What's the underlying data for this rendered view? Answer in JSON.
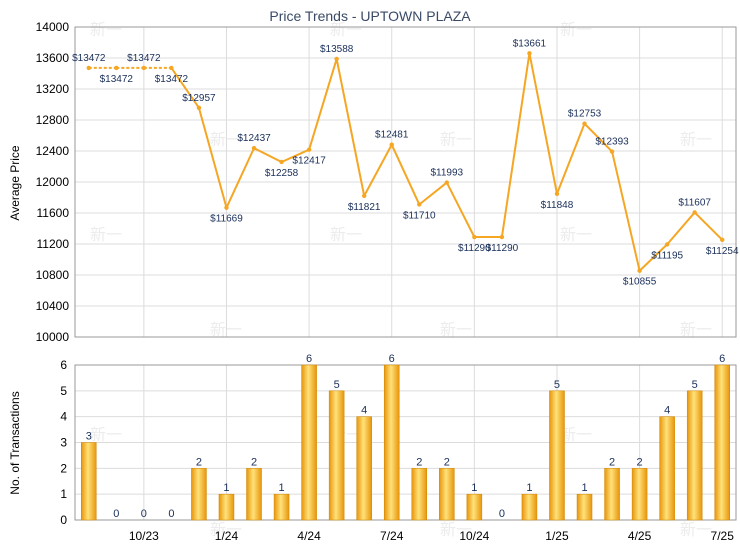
{
  "chart_data": [
    {
      "type": "line",
      "title": "Price Trends - UPTOWN PLAZA",
      "ylabel": "Average Price",
      "ylim": [
        10000,
        14000
      ],
      "yticks": [
        "10000",
        "10400",
        "10800",
        "11200",
        "11600",
        "12000",
        "12400",
        "12800",
        "13200",
        "13600",
        "14000"
      ],
      "grid": true,
      "color": "#f5a623",
      "series": [
        {
          "values": [
            13472,
            13472,
            13472,
            13472,
            12957,
            11669,
            12437,
            12258,
            12417,
            13588,
            11821,
            12481,
            11710,
            11993,
            11290,
            11290,
            13661,
            11848,
            12753,
            12393,
            10855,
            11195,
            11607,
            11254
          ],
          "labels": [
            "$13472",
            "$13472",
            "$13472",
            "$13472",
            "$12957",
            "$11669",
            "$12437",
            "$12258",
            "$12417",
            "$13588",
            "$11821",
            "$12481",
            "$11710",
            "$11993",
            "$11290",
            "$11290",
            "$13661",
            "$11848",
            "$12753",
            "$12393",
            "$10855",
            "$11195",
            "$11607",
            "$11254"
          ],
          "dashed_first_segments": 3
        }
      ]
    },
    {
      "type": "bar",
      "ylabel": "No. of Transactions",
      "ylim": [
        0,
        6
      ],
      "yticks": [
        "0",
        "1",
        "2",
        "3",
        "4",
        "5",
        "6"
      ],
      "x_tick_labels": [
        {
          "index": 2,
          "label": "10/23"
        },
        {
          "index": 5,
          "label": "1/24"
        },
        {
          "index": 8,
          "label": "4/24"
        },
        {
          "index": 11,
          "label": "7/24"
        },
        {
          "index": 14,
          "label": "10/24"
        },
        {
          "index": 17,
          "label": "1/25"
        },
        {
          "index": 20,
          "label": "4/25"
        },
        {
          "index": 23,
          "label": "7/25"
        }
      ],
      "values": [
        3,
        0,
        0,
        0,
        2,
        1,
        2,
        1,
        6,
        5,
        4,
        6,
        2,
        2,
        1,
        0,
        1,
        5,
        1,
        2,
        2,
        4,
        5,
        6
      ],
      "color": "#f5a623"
    }
  ],
  "watermark": "新一"
}
